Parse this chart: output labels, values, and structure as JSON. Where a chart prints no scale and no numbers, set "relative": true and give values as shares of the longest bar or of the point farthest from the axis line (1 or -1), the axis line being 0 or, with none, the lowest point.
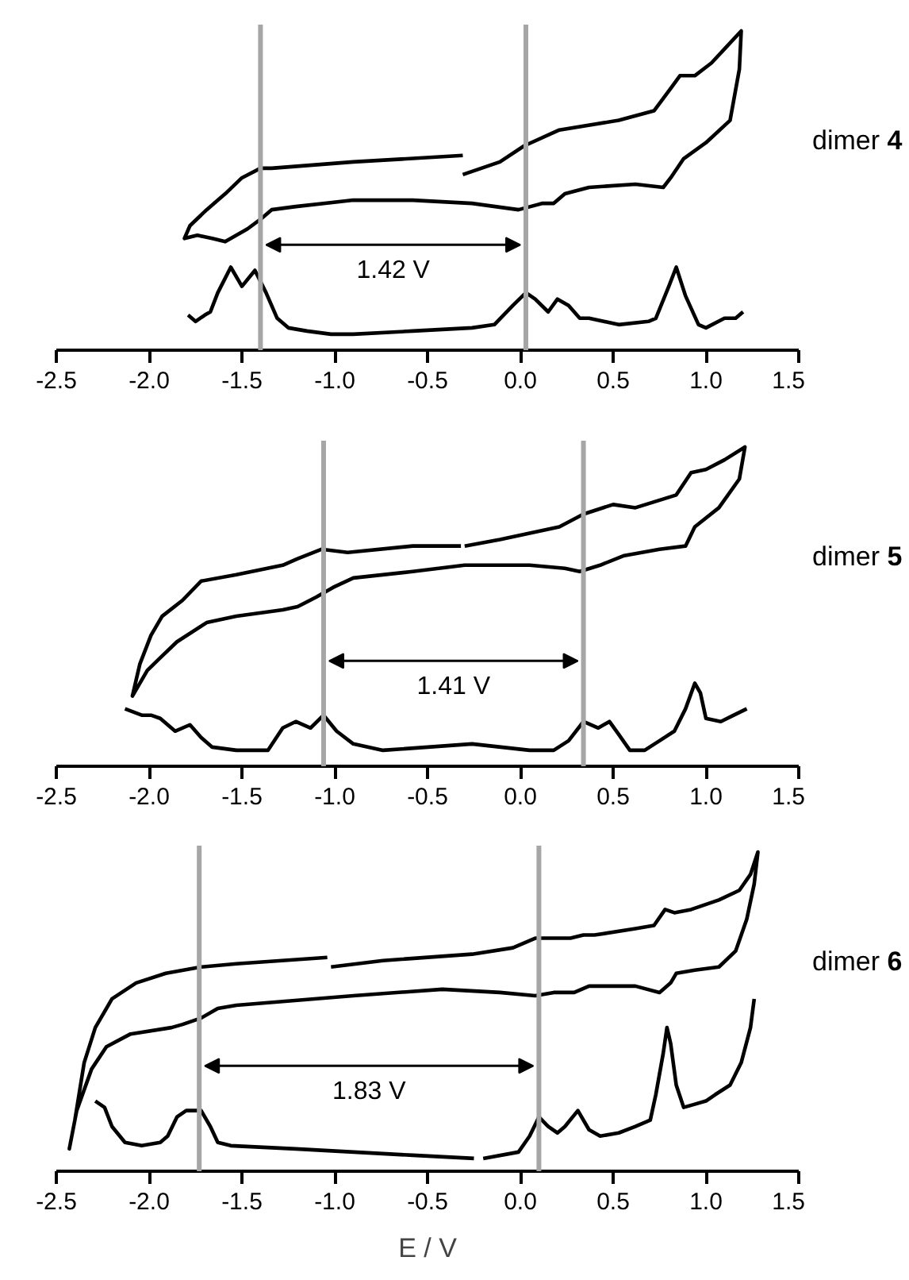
{
  "chart_data": [
    {
      "type": "line",
      "title": "dimer 4",
      "relative": true,
      "xlim": [
        -2.5,
        1.5
      ],
      "xticks": [
        {
          "value": -2.5,
          "label": "-2.5"
        },
        {
          "value": -2.0,
          "label": "-2.0"
        },
        {
          "value": -1.5,
          "label": "-1.5"
        },
        {
          "value": -1.0,
          "label": "-1.0"
        },
        {
          "value": -0.5,
          "label": "-0.5"
        },
        {
          "value": 0,
          "label": "0.0"
        },
        {
          "value": 0.5,
          "label": "0.5"
        },
        {
          "value": 1.0,
          "label": "1.0"
        },
        {
          "value": 1.5,
          "label": "1.5"
        }
      ],
      "tick_labels": "x",
      "grid": false,
      "line_style": "solid",
      "series": [
        {
          "color": "#000000",
          "x": [
            -0.31,
            -0.11,
            0.02,
            0.21,
            0.53,
            0.72,
            0.81,
            0.86,
            0.94,
            1.03,
            1.11,
            1.19,
            1.18,
            1.13,
            1.0,
            0.88,
            0.81,
            0.77,
            0.62,
            0.37,
            0.24,
            0.18,
            0.12,
            -0.01,
            -0.26,
            -0.58,
            -0.9,
            -1.21,
            -1.34,
            -1.4,
            -1.47,
            -1.59,
            -1.66,
            -1.74,
            -1.81,
            -1.78,
            -1.69,
            -1.59,
            -1.5,
            -1.4,
            -1.34,
            -0.9,
            -0.31
          ],
          "values": [
            0.55,
            0.59,
            0.64,
            0.69,
            0.72,
            0.75,
            0.82,
            0.86,
            0.86,
            0.9,
            0.95,
            1.0,
            0.88,
            0.72,
            0.65,
            0.6,
            0.54,
            0.51,
            0.52,
            0.51,
            0.49,
            0.46,
            0.46,
            0.44,
            0.46,
            0.47,
            0.47,
            0.45,
            0.44,
            0.41,
            0.38,
            0.34,
            0.35,
            0.36,
            0.35,
            0.39,
            0.44,
            0.49,
            0.54,
            0.57,
            0.57,
            0.59,
            0.61
          ]
        },
        {
          "color": "#000000",
          "x": [
            -1.79,
            -1.75,
            -1.7,
            -1.67,
            -1.63,
            -1.56,
            -1.5,
            -1.43,
            -1.37,
            -1.31,
            -1.25,
            -1.15,
            -1.02,
            -0.9,
            -0.58,
            -0.26,
            -0.14,
            -0.04,
            0.03,
            0.08,
            0.15,
            0.2,
            0.26,
            0.32,
            0.37,
            0.53,
            0.69,
            0.73,
            0.8,
            0.84,
            0.89,
            0.96,
            1.0,
            1.1,
            1.16,
            1.2
          ],
          "values": [
            0.11,
            0.09,
            0.11,
            0.12,
            0.18,
            0.26,
            0.2,
            0.25,
            0.18,
            0.1,
            0.07,
            0.06,
            0.05,
            0.05,
            0.06,
            0.07,
            0.08,
            0.14,
            0.18,
            0.16,
            0.12,
            0.16,
            0.14,
            0.1,
            0.1,
            0.08,
            0.09,
            0.1,
            0.2,
            0.26,
            0.17,
            0.08,
            0.07,
            0.1,
            0.1,
            0.12
          ]
        }
      ],
      "ref_lines": [
        {
          "axis": "x",
          "value": -1.4,
          "color": "#a6a6a6"
        },
        {
          "axis": "x",
          "value": 0.03,
          "color": "#a6a6a6"
        }
      ],
      "annotations": [
        "1.42 V"
      ]
    },
    {
      "type": "line",
      "title": "dimer 5",
      "relative": true,
      "xlim": [
        -2.5,
        1.5
      ],
      "xticks": [
        {
          "value": -2.5,
          "label": "-2.5"
        },
        {
          "value": -2.0,
          "label": "-2.0"
        },
        {
          "value": -1.5,
          "label": "-1.5"
        },
        {
          "value": -1.0,
          "label": "-1.0"
        },
        {
          "value": -0.5,
          "label": "-0.5"
        },
        {
          "value": 0,
          "label": "0.0"
        },
        {
          "value": 0.5,
          "label": "0.5"
        },
        {
          "value": 1.0,
          "label": "1.0"
        },
        {
          "value": 1.5,
          "label": "1.5"
        }
      ],
      "tick_labels": "x",
      "grid": false,
      "line_style": "solid",
      "series": [
        {
          "color": "#000000",
          "x": [
            -0.3,
            -0.11,
            0.21,
            0.34,
            0.5,
            0.62,
            0.84,
            0.92,
            1.0,
            1.1,
            1.21,
            1.18,
            1.07,
            0.94,
            0.89,
            0.75,
            0.56,
            0.43,
            0.32,
            0.24,
            0.05,
            -0.3,
            -0.58,
            -0.9,
            -1.01,
            -1.1,
            -1.2,
            -1.28,
            -1.53,
            -1.69,
            -1.85,
            -1.94,
            -2.01,
            -2.09,
            -2.05,
            -1.99,
            -1.93,
            -1.82,
            -1.72,
            -1.53,
            -1.28,
            -1.2,
            -1.07,
            -0.93,
            -0.58,
            -0.32
          ],
          "values": [
            0.69,
            0.71,
            0.75,
            0.79,
            0.82,
            0.81,
            0.85,
            0.92,
            0.93,
            0.96,
            1.0,
            0.9,
            0.81,
            0.75,
            0.69,
            0.68,
            0.66,
            0.63,
            0.61,
            0.62,
            0.63,
            0.63,
            0.61,
            0.59,
            0.56,
            0.53,
            0.5,
            0.49,
            0.47,
            0.45,
            0.39,
            0.34,
            0.3,
            0.22,
            0.32,
            0.41,
            0.47,
            0.52,
            0.58,
            0.6,
            0.63,
            0.65,
            0.68,
            0.67,
            0.69,
            0.69
          ]
        },
        {
          "color": "#000000",
          "x": [
            -2.13,
            -2.04,
            -1.99,
            -1.94,
            -1.86,
            -1.78,
            -1.72,
            -1.66,
            -1.53,
            -1.36,
            -1.28,
            -1.21,
            -1.13,
            -1.06,
            -0.99,
            -0.9,
            -0.74,
            -0.26,
            0.05,
            0.18,
            0.26,
            0.34,
            0.42,
            0.48,
            0.53,
            0.59,
            0.67,
            0.75,
            0.83,
            0.89,
            0.94,
            0.97,
            1.0,
            1.08,
            1.15,
            1.22
          ],
          "values": [
            0.18,
            0.16,
            0.16,
            0.15,
            0.11,
            0.13,
            0.09,
            0.06,
            0.05,
            0.05,
            0.12,
            0.14,
            0.12,
            0.16,
            0.11,
            0.07,
            0.05,
            0.07,
            0.05,
            0.05,
            0.08,
            0.14,
            0.12,
            0.14,
            0.1,
            0.05,
            0.05,
            0.08,
            0.11,
            0.18,
            0.26,
            0.23,
            0.15,
            0.14,
            0.16,
            0.18
          ]
        }
      ],
      "ref_lines": [
        {
          "axis": "x",
          "value": -1.06,
          "color": "#a6a6a6"
        },
        {
          "axis": "x",
          "value": 0.34,
          "color": "#a6a6a6"
        }
      ],
      "annotations": [
        "1.41 V"
      ]
    },
    {
      "type": "line",
      "title": "dimer 6",
      "xlabel": "E / V",
      "relative": true,
      "xlim": [
        -2.5,
        1.5
      ],
      "xticks": [
        {
          "value": -2.5,
          "label": "-2.5"
        },
        {
          "value": -2.0,
          "label": "-2.0"
        },
        {
          "value": -1.5,
          "label": "-1.5"
        },
        {
          "value": -1.0,
          "label": "-1.0"
        },
        {
          "value": -0.5,
          "label": "-0.5"
        },
        {
          "value": 0,
          "label": "0.0"
        },
        {
          "value": 0.5,
          "label": "0.5"
        },
        {
          "value": 1.0,
          "label": "1.0"
        },
        {
          "value": 1.5,
          "label": "1.5"
        }
      ],
      "tick_labels": "x",
      "grid": false,
      "line_style": "solid",
      "series": [
        {
          "color": "#000000",
          "x": [
            -1.02,
            -0.74,
            -0.26,
            -0.04,
            0.08,
            0.16,
            0.27,
            0.34,
            0.4,
            0.62,
            0.72,
            0.78,
            0.83,
            0.92,
            1.07,
            1.18,
            1.24,
            1.28,
            1.26,
            1.22,
            1.16,
            1.07,
            0.94,
            0.84,
            0.81,
            0.75,
            0.62,
            0.37,
            0.29,
            0.18,
            0.08,
            -0.11,
            -0.42,
            -0.9,
            -1.53,
            -1.63,
            -1.72,
            -1.82,
            -1.88,
            -2.1,
            -2.23,
            -2.31,
            -2.39,
            -2.43,
            -2.4,
            -2.35,
            -2.29,
            -2.2,
            -2.07,
            -1.91,
            -1.72,
            -1.53,
            -1.04
          ],
          "values": [
            0.64,
            0.66,
            0.68,
            0.7,
            0.73,
            0.73,
            0.73,
            0.74,
            0.74,
            0.76,
            0.77,
            0.82,
            0.81,
            0.82,
            0.85,
            0.88,
            0.93,
            1.0,
            0.9,
            0.79,
            0.69,
            0.64,
            0.63,
            0.62,
            0.59,
            0.56,
            0.58,
            0.58,
            0.56,
            0.56,
            0.55,
            0.56,
            0.57,
            0.55,
            0.52,
            0.51,
            0.48,
            0.46,
            0.45,
            0.43,
            0.39,
            0.32,
            0.19,
            0.07,
            0.16,
            0.34,
            0.45,
            0.54,
            0.59,
            0.62,
            0.64,
            0.65,
            0.67
          ]
        },
        {
          "color": "#000000",
          "x": [
            -2.29,
            -2.24,
            -2.2,
            -2.13,
            -2.04,
            -1.94,
            -1.9,
            -1.85,
            -1.8,
            -1.72,
            -1.67,
            -1.63,
            -1.56,
            -1.21,
            -0.58,
            -0.25,
            -0.24,
            -0.2,
            -0.01,
            0.05,
            0.1,
            0.15,
            0.2,
            0.24,
            0.31,
            0.37,
            0.43,
            0.53,
            0.62,
            0.7,
            0.73,
            0.77,
            0.79,
            0.81,
            0.84,
            0.88,
            0.94,
            1.0,
            1.05,
            1.13,
            1.19,
            1.24,
            1.26
          ],
          "values": [
            0.22,
            0.2,
            0.14,
            0.09,
            0.08,
            0.09,
            0.11,
            0.17,
            0.19,
            0.19,
            0.14,
            0.09,
            0.08,
            0.07,
            0.05,
            0.04,
            null,
            0.04,
            0.06,
            0.11,
            0.17,
            0.14,
            0.12,
            0.14,
            0.19,
            0.13,
            0.11,
            0.12,
            0.14,
            0.16,
            0.24,
            0.37,
            0.45,
            0.4,
            0.27,
            0.2,
            0.21,
            0.22,
            0.24,
            0.27,
            0.34,
            0.45,
            0.54
          ]
        }
      ],
      "ref_lines": [
        {
          "axis": "x",
          "value": -1.73,
          "color": "#a6a6a6"
        },
        {
          "axis": "x",
          "value": 0.1,
          "color": "#a6a6a6"
        }
      ],
      "annotations": [
        "1.83 V"
      ]
    }
  ]
}
